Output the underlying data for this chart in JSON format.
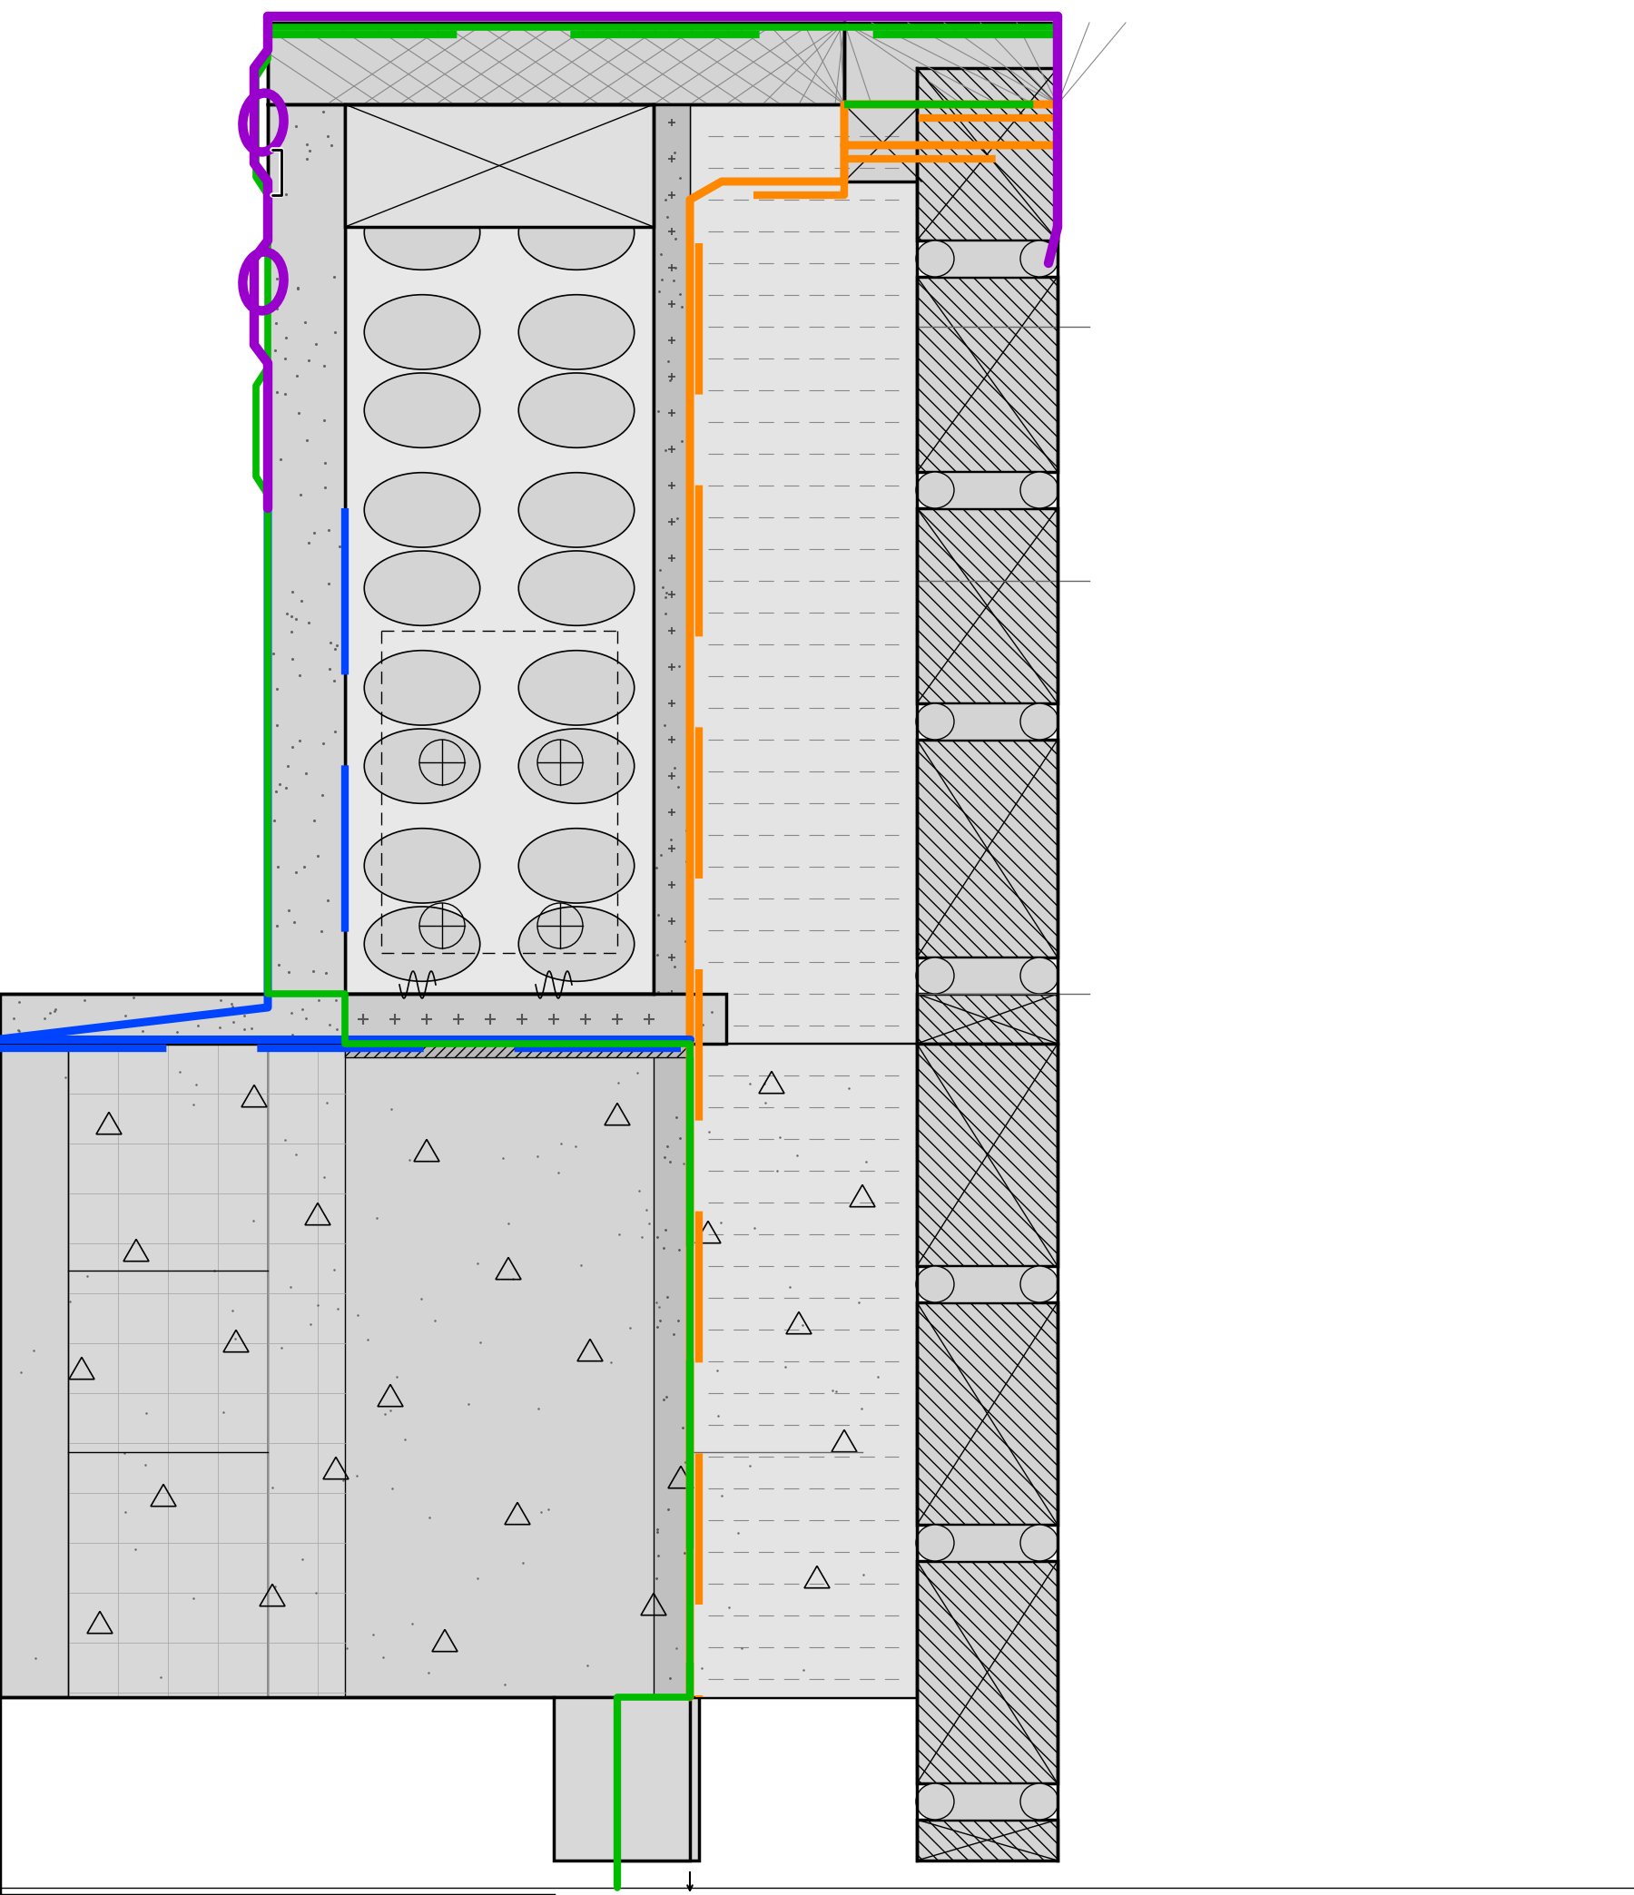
{
  "bg": "#ffffff",
  "gray_light": "#d4d4d4",
  "gray_mid": "#c0c0c0",
  "gray_dark": "#a0a0a0",
  "black": "#000000",
  "purple": "#9900cc",
  "green": "#00bb00",
  "blue": "#0044ff",
  "orange": "#ff8800",
  "white": "#ffffff",
  "lw_struct": 2.5,
  "lw_thick": 4.0,
  "lw_thin": 1.0,
  "lw_membrane": 5.5,
  "lw_dash": 6.0
}
